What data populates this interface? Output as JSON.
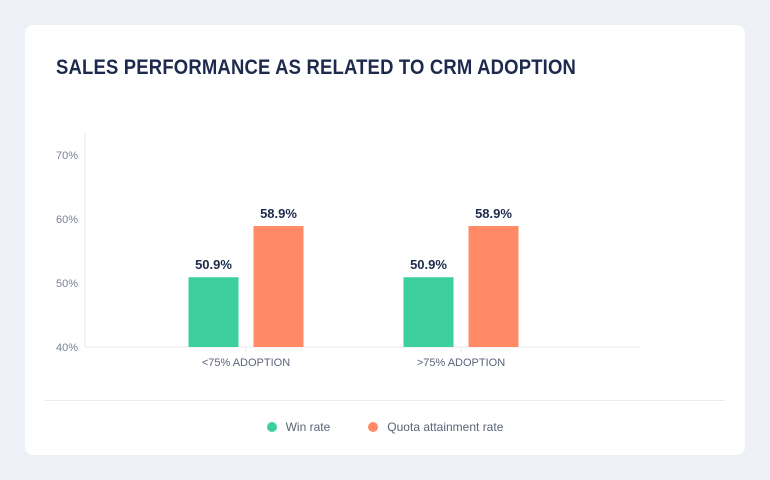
{
  "chart_data": {
    "type": "bar",
    "title": "SALES PERFORMANCE AS RELATED TO CRM ADOPTION",
    "categories": [
      "<75% ADOPTION",
      ">75% ADOPTION"
    ],
    "series": [
      {
        "name": "Win rate",
        "values": [
          50.9,
          50.9
        ],
        "labels": [
          "50.9%",
          "50.9%"
        ],
        "color": "#3ecf9f"
      },
      {
        "name": "Quota attainment rate",
        "values": [
          58.9,
          58.9
        ],
        "labels": [
          "58.9%",
          "58.9%"
        ],
        "color": "#ff8a65"
      }
    ],
    "yticks": [
      "40%",
      "50%",
      "60%",
      "70%"
    ],
    "ytick_values": [
      40,
      50,
      60,
      70
    ],
    "ylim": [
      40,
      70
    ],
    "grid": false,
    "legend": "bottom"
  }
}
